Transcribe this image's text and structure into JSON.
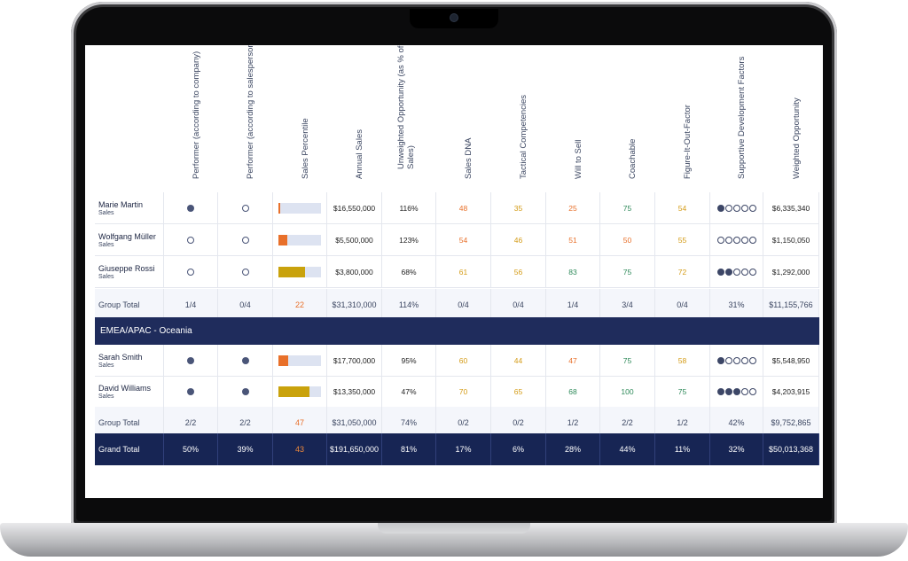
{
  "headers": [
    "Performer (according to company)",
    "Performer (according to salesperson)",
    "Sales Percentile",
    "Annual Sales",
    "Unweighted Opportunity (as % of Sales)",
    "Sales DNA",
    "Tactical Competencies",
    "Will to Sell",
    "Coachable",
    "Figure-It-Out-Factor",
    "Supportive Development Factors",
    "Weighted Opportunity"
  ],
  "rows": [
    {
      "name": "Marie Martin",
      "role": "Sales",
      "company": "filled",
      "self": "empty",
      "percentile": 0.05,
      "pct_color": "#e8702a",
      "annual": "$16,550,000",
      "unweighted": "116%",
      "dna": "48",
      "dna_c": "orange",
      "tactical": "35",
      "tac_c": "amber",
      "will": "25",
      "will_c": "orange",
      "coach": "75",
      "coach_c": "green",
      "fiof": "54",
      "fiof_c": "amber",
      "sdf": 1,
      "weighted": "$6,335,340"
    },
    {
      "name": "Wolfgang Müller",
      "role": "Sales",
      "company": "empty",
      "self": "empty",
      "percentile": 0.2,
      "pct_color": "#e8702a",
      "annual": "$5,500,000",
      "unweighted": "123%",
      "dna": "54",
      "dna_c": "orange",
      "tactical": "46",
      "tac_c": "amber",
      "will": "51",
      "will_c": "orange",
      "coach": "50",
      "coach_c": "orange",
      "fiof": "55",
      "fiof_c": "amber",
      "sdf": 0,
      "weighted": "$1,150,050"
    },
    {
      "name": "Giuseppe Rossi",
      "role": "Sales",
      "company": "empty",
      "self": "empty",
      "percentile": 0.62,
      "pct_color": "#c9a20c",
      "annual": "$3,800,000",
      "unweighted": "68%",
      "dna": "61",
      "dna_c": "amber",
      "tactical": "56",
      "tac_c": "amber",
      "will": "83",
      "will_c": "green",
      "coach": "75",
      "coach_c": "green",
      "fiof": "72",
      "fiof_c": "amber",
      "sdf": 2,
      "weighted": "$1,292,000"
    }
  ],
  "group1": {
    "label": "Group Total",
    "company": "1/4",
    "self": "0/4",
    "percentile": "22",
    "annual": "$31,310,000",
    "unweighted": "114%",
    "dna": "0/4",
    "tactical": "0/4",
    "will": "1/4",
    "coach": "3/4",
    "fiof": "0/4",
    "sdf": "31%",
    "weighted": "$11,155,766"
  },
  "region": "EMEA/APAC - Oceania",
  "rows2": [
    {
      "name": "Sarah Smith",
      "role": "Sales",
      "company": "filled",
      "self": "filled",
      "percentile": 0.22,
      "pct_color": "#e8702a",
      "annual": "$17,700,000",
      "unweighted": "95%",
      "dna": "60",
      "dna_c": "amber",
      "tactical": "44",
      "tac_c": "amber",
      "will": "47",
      "will_c": "orange",
      "coach": "75",
      "coach_c": "green",
      "fiof": "58",
      "fiof_c": "amber",
      "sdf": 1,
      "weighted": "$5,548,950"
    },
    {
      "name": "David Williams",
      "role": "Sales",
      "company": "filled",
      "self": "filled",
      "percentile": 0.72,
      "pct_color": "#c9a20c",
      "annual": "$13,350,000",
      "unweighted": "47%",
      "dna": "70",
      "dna_c": "amber",
      "tactical": "65",
      "tac_c": "amber",
      "will": "68",
      "will_c": "green",
      "coach": "100",
      "coach_c": "green",
      "fiof": "75",
      "fiof_c": "green",
      "sdf": 3,
      "weighted": "$4,203,915"
    }
  ],
  "group2": {
    "label": "Group Total",
    "company": "2/2",
    "self": "2/2",
    "percentile": "47",
    "annual": "$31,050,000",
    "unweighted": "74%",
    "dna": "0/2",
    "tactical": "0/2",
    "will": "1/2",
    "coach": "2/2",
    "fiof": "1/2",
    "sdf": "42%",
    "weighted": "$9,752,865"
  },
  "grand": {
    "label": "Grand Total",
    "company": "50%",
    "self": "39%",
    "percentile": "43",
    "annual": "$191,650,000",
    "unweighted": "81%",
    "dna": "17%",
    "tactical": "6%",
    "will": "28%",
    "coach": "44%",
    "fiof": "11%",
    "sdf": "32%",
    "weighted": "$50,013,368"
  },
  "colors": {
    "orange": "#e8702a",
    "amber": "#d49b16",
    "green": "#2f8a5a",
    "navy": "#172554"
  }
}
